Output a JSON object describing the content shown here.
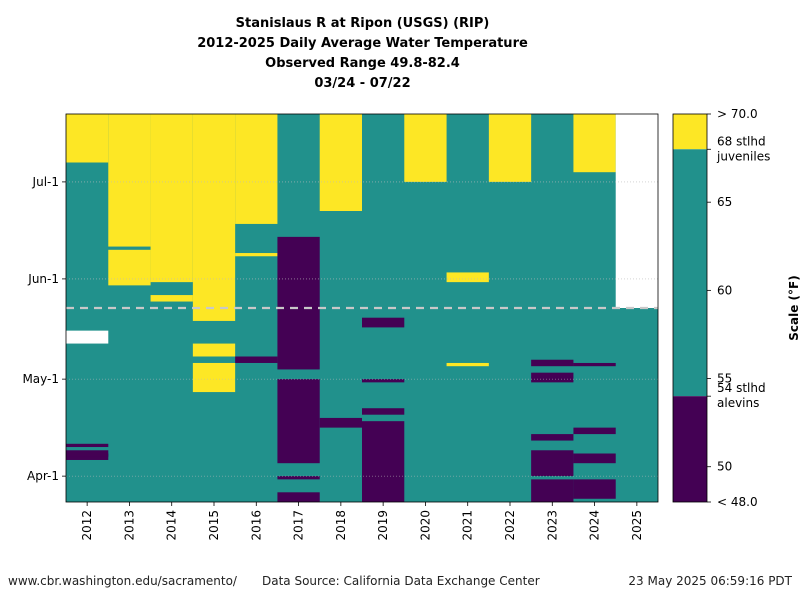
{
  "title_lines": [
    "Stanislaus R at Ripon (USGS) (RIP)",
    "2012-2025 Daily Average Water Temperature",
    "Observed Range 49.8-82.4",
    "03/24 - 07/22"
  ],
  "footer": {
    "website": "www.cbr.washington.edu/sacramento/",
    "source": "Data Source: California Data Exchange Center",
    "timestamp": "23 May 2025 06:59:16 PDT"
  },
  "colors": {
    "high": "#fde725",
    "mid": "#21918c",
    "low": "#440154",
    "missing": "#ffffff",
    "today_line": "#c8c8c8"
  },
  "chart_data": {
    "type": "heatmap",
    "x_categories": [
      "2012",
      "2013",
      "2014",
      "2015",
      "2016",
      "2017",
      "2018",
      "2019",
      "2020",
      "2021",
      "2022",
      "2023",
      "2024",
      "2025"
    ],
    "y_tick_labels": [
      {
        "label": "Apr-1",
        "day": 8
      },
      {
        "label": "May-1",
        "day": 38
      },
      {
        "label": "Jun-1",
        "day": 69
      },
      {
        "label": "Jul-1",
        "day": 99
      }
    ],
    "date_range": [
      "03/24",
      "07/22"
    ],
    "current_date_day": 60,
    "value_range": [
      49.8,
      82.4
    ],
    "colorbar": {
      "label": "Scale (°F)",
      "min": 48.0,
      "max": 70.0,
      "min_label": "< 48.0",
      "max_label": "> 70.0",
      "thresholds": [
        54,
        68
      ],
      "ticks": [
        50,
        55,
        60,
        65
      ],
      "threshold_labels": [
        {
          "value": 68,
          "lines": [
            "68 stlhd",
            "juveniles"
          ]
        },
        {
          "value": 54,
          "lines": [
            "54 stlhd",
            "alevins"
          ]
        }
      ]
    },
    "base_class": "mid",
    "cells": [
      {
        "year": "2012",
        "class": "low",
        "from": 13,
        "to": 16
      },
      {
        "year": "2012",
        "class": "low",
        "from": 17,
        "to": 18
      },
      {
        "year": "2012",
        "class": "low",
        "from": 14,
        "to": 15
      },
      {
        "year": "2012",
        "class": "missing",
        "from": 49,
        "to": 53
      },
      {
        "year": "2012",
        "class": "high",
        "from": 105,
        "to": 120
      },
      {
        "year": "2013",
        "class": "high",
        "from": 67,
        "to": 78
      },
      {
        "year": "2013",
        "class": "high",
        "from": 79,
        "to": 120
      },
      {
        "year": "2014",
        "class": "high",
        "from": 62,
        "to": 64
      },
      {
        "year": "2014",
        "class": "high",
        "from": 68,
        "to": 120
      },
      {
        "year": "2015",
        "class": "high",
        "from": 34,
        "to": 43
      },
      {
        "year": "2015",
        "class": "high",
        "from": 45,
        "to": 49
      },
      {
        "year": "2015",
        "class": "high",
        "from": 56,
        "to": 120
      },
      {
        "year": "2016",
        "class": "low",
        "from": 43,
        "to": 45
      },
      {
        "year": "2016",
        "class": "high",
        "from": 76,
        "to": 77
      },
      {
        "year": "2016",
        "class": "high",
        "from": 86,
        "to": 120
      },
      {
        "year": "2017",
        "class": "low",
        "from": 0,
        "to": 3
      },
      {
        "year": "2017",
        "class": "low",
        "from": 7,
        "to": 8
      },
      {
        "year": "2017",
        "class": "low",
        "from": 12,
        "to": 38
      },
      {
        "year": "2017",
        "class": "low",
        "from": 41,
        "to": 82
      },
      {
        "year": "2018",
        "class": "low",
        "from": 23,
        "to": 26
      },
      {
        "year": "2018",
        "class": "high",
        "from": 90,
        "to": 120
      },
      {
        "year": "2019",
        "class": "low",
        "from": 0,
        "to": 25
      },
      {
        "year": "2019",
        "class": "low",
        "from": 27,
        "to": 29
      },
      {
        "year": "2019",
        "class": "low",
        "from": 37,
        "to": 38
      },
      {
        "year": "2019",
        "class": "low",
        "from": 54,
        "to": 57
      },
      {
        "year": "2020",
        "class": "high",
        "from": 99,
        "to": 120
      },
      {
        "year": "2021",
        "class": "high",
        "from": 42,
        "to": 43
      },
      {
        "year": "2021",
        "class": "high",
        "from": 68,
        "to": 71
      },
      {
        "year": "2022",
        "class": "high",
        "from": 99,
        "to": 120
      },
      {
        "year": "2023",
        "class": "low",
        "from": 0,
        "to": 7
      },
      {
        "year": "2023",
        "class": "low",
        "from": 8,
        "to": 16
      },
      {
        "year": "2023",
        "class": "low",
        "from": 19,
        "to": 21
      },
      {
        "year": "2023",
        "class": "low",
        "from": 37,
        "to": 40
      },
      {
        "year": "2023",
        "class": "low",
        "from": 42,
        "to": 44
      },
      {
        "year": "2024",
        "class": "low",
        "from": 1,
        "to": 7
      },
      {
        "year": "2024",
        "class": "low",
        "from": 12,
        "to": 15
      },
      {
        "year": "2024",
        "class": "low",
        "from": 21,
        "to": 23
      },
      {
        "year": "2024",
        "class": "low",
        "from": 42,
        "to": 43
      },
      {
        "year": "2024",
        "class": "high",
        "from": 102,
        "to": 120
      },
      {
        "year": "2025",
        "class": "missing",
        "from": 60,
        "to": 120
      }
    ]
  }
}
